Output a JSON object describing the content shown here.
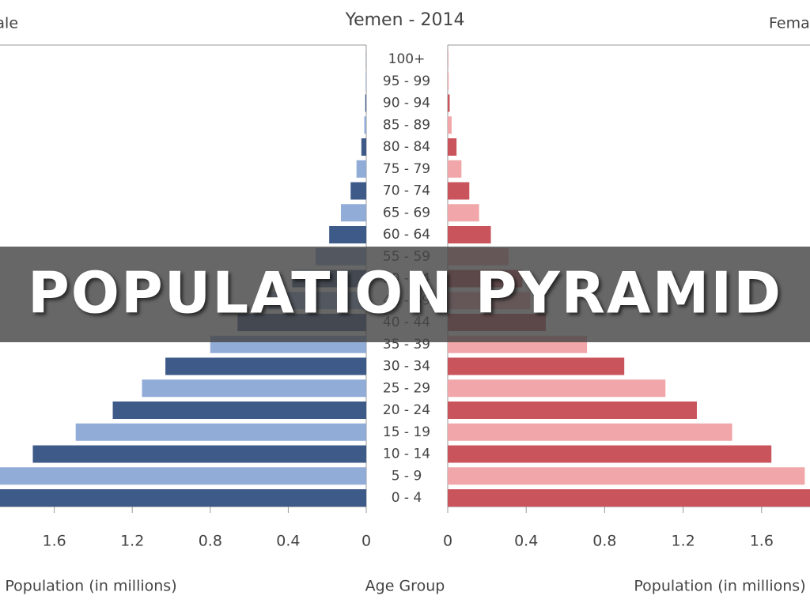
{
  "banner": {
    "text": "POPULATION PYRAMID"
  },
  "chart_data": {
    "type": "pyramid",
    "title": "Yemen - 2014",
    "x_label": "Population (in millions)",
    "y_label": "Age Group",
    "categories": [
      "0 - 4",
      "5 - 9",
      "10 - 14",
      "15 - 19",
      "20 - 24",
      "25 - 29",
      "30 - 34",
      "35 - 39",
      "40 - 44",
      "45 - 49",
      "50 - 54",
      "55 - 59",
      "60 - 64",
      "65 - 69",
      "70 - 74",
      "75 - 79",
      "80 - 84",
      "85 - 89",
      "90 - 94",
      "95 - 99",
      "100+"
    ],
    "series": [
      {
        "name": "Male",
        "side": "left",
        "colors": [
          "#3d5a88",
          "#92acd8"
        ],
        "values": [
          1.95,
          1.9,
          1.71,
          1.49,
          1.3,
          1.15,
          1.03,
          0.8,
          0.66,
          0.5,
          0.38,
          0.26,
          0.19,
          0.13,
          0.08,
          0.05,
          0.025,
          0.01,
          0.005,
          0.003,
          0.001
        ]
      },
      {
        "name": "Female",
        "side": "right",
        "colors": [
          "#c9545c",
          "#f1a7a9"
        ],
        "values": [
          1.9,
          1.82,
          1.65,
          1.45,
          1.27,
          1.11,
          0.9,
          0.71,
          0.5,
          0.42,
          0.38,
          0.31,
          0.22,
          0.16,
          0.11,
          0.07,
          0.045,
          0.02,
          0.01,
          0.005,
          0.002
        ]
      }
    ],
    "xlim": [
      0,
      2
    ],
    "xticks": [
      0,
      0.4,
      0.8,
      1.2,
      1.6
    ]
  }
}
